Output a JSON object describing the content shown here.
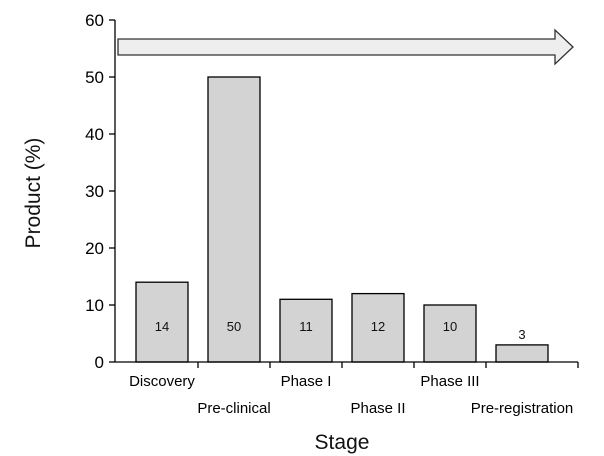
{
  "chart_data": {
    "type": "bar",
    "categories": [
      "Discovery",
      "Pre-clinical",
      "Phase I",
      "Phase II",
      "Phase III",
      "Pre-registration"
    ],
    "values": [
      14,
      50,
      11,
      12,
      10,
      3
    ],
    "data_labels": [
      "14",
      "50",
      "11",
      "12",
      "10",
      "3"
    ],
    "xlabel": "Stage",
    "ylabel": "Product (%)",
    "ylim": [
      0,
      60
    ],
    "yticks": [
      0,
      10,
      20,
      30,
      40,
      50,
      60
    ],
    "grid": false,
    "legend": "none",
    "annotation": "progression arrow across top",
    "colors": {
      "bar_fill": "#d3d3d3",
      "bar_stroke": "#000000",
      "arrow_fill": "#eeeeee",
      "axis": "#000000"
    }
  }
}
